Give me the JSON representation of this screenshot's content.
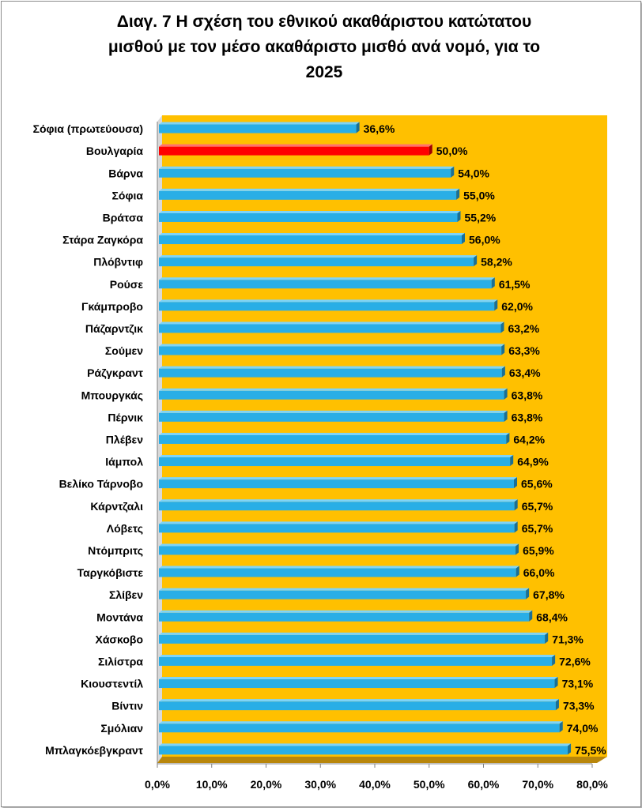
{
  "chart_data": {
    "type": "bar",
    "orientation": "horizontal",
    "title": "Διαγ. 7   Η σχέση του εθνικού ακαθάριστου κατώτατου μισθού με τον μέσο ακαθάριστο μισθό ανά νομό, για το 2025",
    "title_lines": [
      "Διαγ. 7   Η σχέση του εθνικού ακαθάριστου κατώτατου",
      "μισθού με τον μέσο ακαθάριστο μισθό ανά νομό, για το",
      "2025"
    ],
    "xlabel": "",
    "ylabel": "",
    "xlim": [
      0,
      80
    ],
    "x_ticks": [
      0,
      10,
      20,
      30,
      40,
      50,
      60,
      70,
      80
    ],
    "x_tick_labels": [
      "0,0%",
      "10,0%",
      "20,0%",
      "30,0%",
      "40,0%",
      "50,0%",
      "60,0%",
      "70,0%",
      "80,0%"
    ],
    "categories": [
      "Σόφια (πρωτεύουσα)",
      "Βουλγαρία",
      "Βάρνα",
      "Σόφια",
      "Βράτσα",
      "Στάρα Ζαγκόρα",
      "Πλόβντιφ",
      "Ρούσε",
      "Γκάμπροβο",
      "Πάζαρντζικ",
      "Σούμεν",
      "Ράζγκραντ",
      "Μπουργκάς",
      "Πέρνικ",
      "Πλέβεν",
      "Ιάμπολ",
      "Βελίκο Τάρνοβο",
      "Κάρντζαλι",
      "Λόβετς",
      "Ντόμπριτς",
      "Ταργκόβιστε",
      "Σλίβεν",
      "Μοντάνα",
      "Χάσκοβο",
      "Σιλίστρα",
      "Κιουστεντίλ",
      "Βίντιν",
      "Σμόλιαν",
      "Μπλαγκόεβγκραντ"
    ],
    "values": [
      36.6,
      50.0,
      54.0,
      55.0,
      55.2,
      56.0,
      58.2,
      61.5,
      62.0,
      63.2,
      63.3,
      63.4,
      63.8,
      63.8,
      64.2,
      64.9,
      65.6,
      65.7,
      65.7,
      65.9,
      66.0,
      67.8,
      68.4,
      71.3,
      72.6,
      73.1,
      73.3,
      74.0,
      75.5
    ],
    "value_labels": [
      "36,6%",
      "50,0%",
      "54,0%",
      "55,0%",
      "55,2%",
      "56,0%",
      "58,2%",
      "61,5%",
      "62,0%",
      "63,2%",
      "63,3%",
      "63,4%",
      "63,8%",
      "63,8%",
      "64,2%",
      "64,9%",
      "65,6%",
      "65,7%",
      "65,7%",
      "65,9%",
      "66,0%",
      "67,8%",
      "68,4%",
      "71,3%",
      "72,6%",
      "73,1%",
      "73,3%",
      "74,0%",
      "75,5%"
    ],
    "highlight_category": "Βουλγαρία",
    "colors": {
      "bar": "#29aee6",
      "bar_top": "#7fd4f7",
      "bar_end": "#1a6f96",
      "highlight": "#ff0000",
      "highlight_top": "#ff7070",
      "highlight_end": "#a00000",
      "plot_background": "#ffc000",
      "floor": "#b8860b",
      "wall": "#d9d9d9"
    },
    "grid": false,
    "legend": "none"
  }
}
